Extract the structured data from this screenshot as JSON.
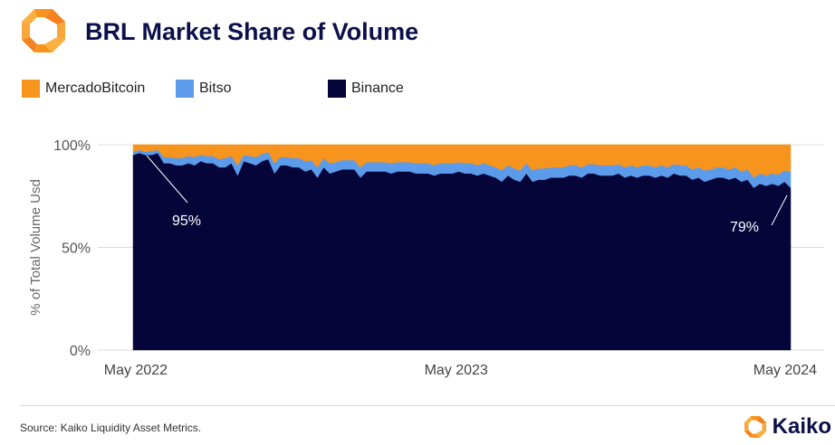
{
  "header": {
    "title": "BRL Market Share of Volume"
  },
  "legend": [
    {
      "label": "MercadoBitcoin",
      "color": "#f7941d"
    },
    {
      "label": "Bitso",
      "color": "#5b9bea"
    },
    {
      "label": "Binance",
      "color": "#05053a"
    }
  ],
  "footer": {
    "source": "Source: Kaiko Liquidity Asset Metrics.",
    "brand": "Kaiko"
  },
  "icons": {
    "logo": "kaiko-logo-icon"
  },
  "chart_data": {
    "type": "area",
    "stacked": true,
    "ylabel": "% of Total Volume Usd",
    "ylim": [
      0,
      100
    ],
    "yticks": [
      "0%",
      "50%",
      "100%"
    ],
    "xticks": [
      {
        "label": "May 2022",
        "date": "2022-05"
      },
      {
        "label": "May 2023",
        "date": "2023-05"
      },
      {
        "label": "May 2024",
        "date": "2024-05"
      }
    ],
    "x_start": "2022-04-28",
    "x_end": "2024-05-16",
    "grid": true,
    "annotations": [
      {
        "text": "95%",
        "date": "2022-05-01",
        "value": 95
      },
      {
        "text": "79%",
        "date": "2024-05-16",
        "value": 79
      }
    ],
    "dates": [
      "2022-04-28",
      "2022-05-05",
      "2022-05-12",
      "2022-05-19",
      "2022-05-26",
      "2022-06-02",
      "2022-06-09",
      "2022-06-16",
      "2022-06-23",
      "2022-06-30",
      "2022-07-07",
      "2022-07-14",
      "2022-07-21",
      "2022-07-28",
      "2022-08-04",
      "2022-08-11",
      "2022-08-18",
      "2022-08-25",
      "2022-09-01",
      "2022-09-08",
      "2022-09-15",
      "2022-09-22",
      "2022-09-29",
      "2022-10-06",
      "2022-10-13",
      "2022-10-20",
      "2022-10-27",
      "2022-11-03",
      "2022-11-10",
      "2022-11-17",
      "2022-11-24",
      "2022-12-01",
      "2022-12-08",
      "2022-12-15",
      "2022-12-22",
      "2022-12-29",
      "2023-01-05",
      "2023-01-12",
      "2023-01-19",
      "2023-01-26",
      "2023-02-02",
      "2023-02-09",
      "2023-02-16",
      "2023-02-23",
      "2023-03-02",
      "2023-03-09",
      "2023-03-16",
      "2023-03-23",
      "2023-03-30",
      "2023-04-06",
      "2023-04-13",
      "2023-04-20",
      "2023-04-27",
      "2023-05-04",
      "2023-05-11",
      "2023-05-18",
      "2023-05-25",
      "2023-06-01",
      "2023-06-08",
      "2023-06-15",
      "2023-06-22",
      "2023-06-29",
      "2023-07-06",
      "2023-07-13",
      "2023-07-20",
      "2023-07-27",
      "2023-08-03",
      "2023-08-10",
      "2023-08-17",
      "2023-08-24",
      "2023-08-31",
      "2023-09-07",
      "2023-09-14",
      "2023-09-21",
      "2023-09-28",
      "2023-10-05",
      "2023-10-12",
      "2023-10-19",
      "2023-10-26",
      "2023-11-02",
      "2023-11-09",
      "2023-11-16",
      "2023-11-23",
      "2023-11-30",
      "2023-12-07",
      "2023-12-14",
      "2023-12-21",
      "2023-12-28",
      "2024-01-04",
      "2024-01-11",
      "2024-01-18",
      "2024-01-25",
      "2024-02-01",
      "2024-02-08",
      "2024-02-15",
      "2024-02-22",
      "2024-02-29",
      "2024-03-07",
      "2024-03-14",
      "2024-03-21",
      "2024-03-28",
      "2024-04-04",
      "2024-04-11",
      "2024-04-18",
      "2024-04-25",
      "2024-05-02",
      "2024-05-09",
      "2024-05-16"
    ],
    "series": [
      {
        "name": "Binance",
        "color": "#05053a",
        "values": [
          95,
          96,
          95,
          95,
          96,
          91,
          91,
          90,
          90,
          91,
          90,
          92,
          91,
          91,
          89,
          89,
          91,
          85,
          92,
          91,
          90,
          92,
          93,
          86,
          90,
          90,
          89,
          89,
          87,
          88,
          84,
          89,
          86,
          87,
          88,
          88,
          88,
          84,
          87,
          87,
          87,
          87,
          86,
          87,
          87,
          87,
          86,
          86,
          86,
          85,
          86,
          86,
          86,
          87,
          86,
          86,
          85,
          86,
          85,
          84,
          82,
          85,
          83,
          82,
          86,
          82,
          83,
          83,
          84,
          84,
          84,
          85,
          85,
          84,
          86,
          86,
          85,
          85,
          85,
          86,
          84,
          85,
          84,
          85,
          85,
          84,
          85,
          84,
          86,
          85,
          85,
          83,
          84,
          82,
          83,
          84,
          84,
          83,
          84,
          82,
          83,
          79,
          81,
          80,
          81,
          80,
          82,
          79
        ]
      },
      {
        "name": "Bitso",
        "color": "#5b9bea",
        "values": [
          1.5,
          1.5,
          1.5,
          2,
          1.5,
          3,
          3,
          3.5,
          3.5,
          3.5,
          4,
          3,
          3.5,
          3.5,
          4,
          4.5,
          3.5,
          5,
          3,
          3.5,
          4,
          3.5,
          3.5,
          5,
          4,
          4,
          4.5,
          4.5,
          5,
          4.5,
          5,
          4.5,
          5,
          4.5,
          4.5,
          4.5,
          4.5,
          5,
          4.5,
          4.5,
          4.5,
          4.5,
          5,
          4.5,
          4.5,
          4.5,
          5,
          5,
          5,
          5,
          5,
          5,
          5,
          4.5,
          5,
          5,
          5,
          5,
          5,
          5,
          5.5,
          5,
          5.5,
          5.5,
          5,
          5.5,
          5.5,
          5.5,
          5,
          5,
          5,
          5,
          5,
          5,
          4.5,
          4.5,
          5,
          5,
          5,
          4.5,
          5,
          5,
          5,
          5,
          5,
          5,
          5,
          5,
          4.5,
          5,
          5,
          5,
          5,
          5.5,
          5,
          5,
          5,
          5,
          5,
          5,
          5,
          5,
          5,
          5,
          5,
          5.5,
          5.5,
          8
        ]
      },
      {
        "name": "MercadoBitcoin",
        "color": "#f7941d",
        "values": [
          3.5,
          2.5,
          3.5,
          3,
          2.5,
          6,
          6,
          6.5,
          6.5,
          5.5,
          6,
          5,
          5.5,
          5.5,
          7,
          6.5,
          5.5,
          10,
          5,
          5.5,
          6,
          4.5,
          3.5,
          9,
          6,
          6,
          6.5,
          6.5,
          8,
          7.5,
          11,
          6.5,
          9,
          8.5,
          7.5,
          7.5,
          7.5,
          11,
          8.5,
          8.5,
          8.5,
          8.5,
          9,
          8.5,
          8.5,
          8.5,
          9,
          9,
          9,
          10,
          9,
          9,
          9,
          8.5,
          9,
          9,
          10,
          9,
          10,
          11,
          12.5,
          10,
          11.5,
          12.5,
          9,
          12.5,
          11.5,
          11.5,
          11,
          11,
          11,
          10,
          10,
          11,
          9.5,
          9.5,
          10,
          10,
          10,
          9.5,
          11,
          10,
          11,
          10,
          10,
          11,
          10,
          11,
          9.5,
          10,
          10,
          12,
          11,
          12.5,
          12,
          11,
          11,
          12,
          11,
          13,
          12,
          16,
          14,
          15,
          14,
          14.5,
          12.5,
          13
        ]
      }
    ]
  }
}
